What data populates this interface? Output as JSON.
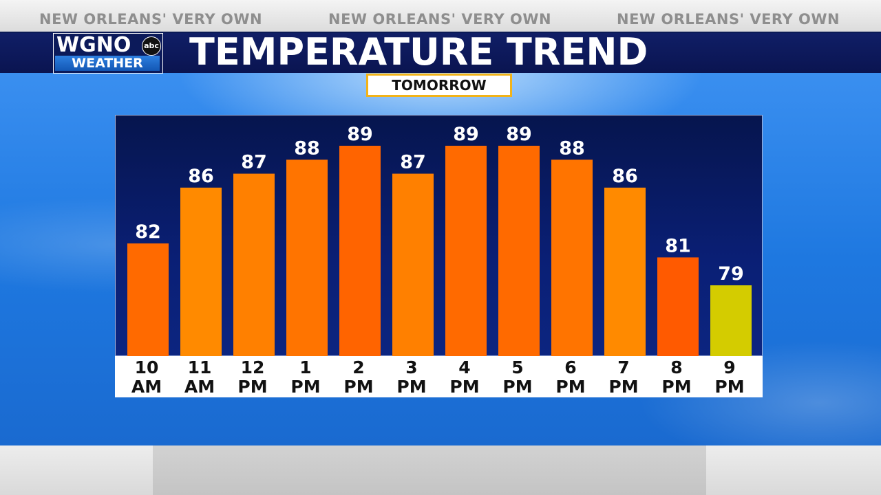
{
  "header": {
    "tagline": "NEW ORLEANS' VERY OWN",
    "title": "TEMPERATURE TREND",
    "subtitle": "TOMORROW"
  },
  "logo": {
    "brand": "WGNO",
    "network": "abc",
    "label": "WEATHER"
  },
  "colors": {
    "hot": "#ff6a00",
    "warm": "#ff8a00",
    "hottest": "#ff5a00",
    "mild": "#d4cc00",
    "plot_bg": "#0a1f75"
  },
  "chart_data": {
    "type": "bar",
    "title": "TEMPERATURE TREND",
    "subtitle": "TOMORROW",
    "categories": [
      [
        "10",
        "AM"
      ],
      [
        "11",
        "AM"
      ],
      [
        "12",
        "PM"
      ],
      [
        "1",
        "PM"
      ],
      [
        "2",
        "PM"
      ],
      [
        "3",
        "PM"
      ],
      [
        "4",
        "PM"
      ],
      [
        "5",
        "PM"
      ],
      [
        "6",
        "PM"
      ],
      [
        "7",
        "PM"
      ],
      [
        "8",
        "PM"
      ],
      [
        "9",
        "PM"
      ]
    ],
    "values": [
      82,
      86,
      87,
      88,
      89,
      87,
      89,
      89,
      88,
      86,
      81,
      79
    ],
    "bar_colors": [
      "#ff6a00",
      "#ff8a00",
      "#ff8000",
      "#ff7400",
      "#ff6400",
      "#ff8000",
      "#ff6a00",
      "#ff6a00",
      "#ff7400",
      "#ff8a00",
      "#ff5a00",
      "#d4cc00"
    ],
    "grid": false,
    "legend": "none"
  }
}
